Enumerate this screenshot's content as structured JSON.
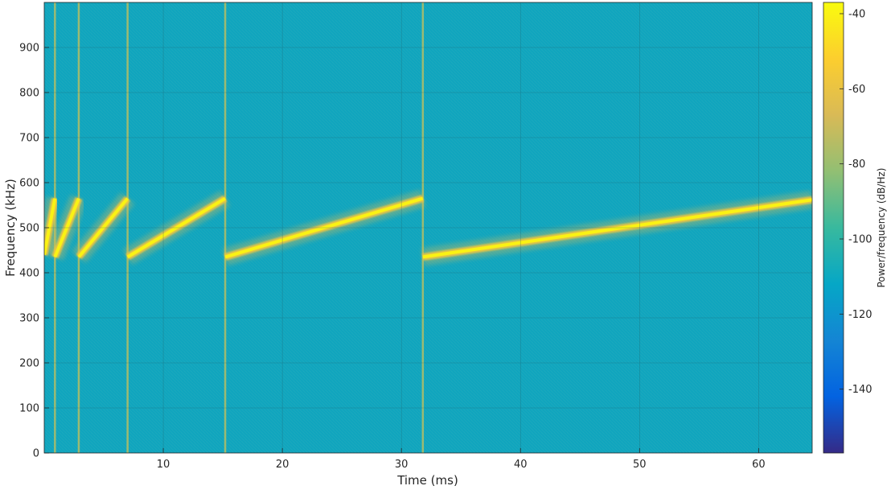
{
  "chart_data": {
    "type": "heatmap",
    "title": "",
    "xlabel": "Time (ms)",
    "ylabel": "Frequency (kHz)",
    "xlim": [
      0,
      64.5
    ],
    "ylim": [
      0,
      1000
    ],
    "xticks": [
      10,
      20,
      30,
      40,
      50,
      60
    ],
    "yticks": [
      0,
      100,
      200,
      300,
      400,
      500,
      600,
      700,
      800,
      900
    ],
    "grid": true,
    "colorbar": {
      "label": "Power/frequency (dB/Hz)",
      "range": [
        -157,
        -37
      ],
      "ticks": [
        -40,
        -60,
        -80,
        -100,
        -120,
        -140
      ],
      "colormap": [
        "#352a87",
        "#0363e1",
        "#1485d4",
        "#06a7c6",
        "#38b99e",
        "#92bf73",
        "#d9ba56",
        "#fcce2e",
        "#f9fb0e"
      ],
      "background_color": "#10a5be"
    },
    "chirps": [
      {
        "t_start": 0.0,
        "t_end": 0.9,
        "f_start": 440,
        "f_end": 565
      },
      {
        "t_start": 0.9,
        "t_end": 2.9,
        "f_start": 435,
        "f_end": 565
      },
      {
        "t_start": 2.9,
        "t_end": 7.0,
        "f_start": 435,
        "f_end": 565
      },
      {
        "t_start": 7.0,
        "t_end": 15.2,
        "f_start": 435,
        "f_end": 565
      },
      {
        "t_start": 15.2,
        "t_end": 31.8,
        "f_start": 435,
        "f_end": 565
      },
      {
        "t_start": 31.8,
        "t_end": 64.5,
        "f_start": 435,
        "f_end": 562
      }
    ],
    "transitions_ms": [
      0.9,
      2.9,
      7.0,
      15.2,
      31.8
    ],
    "chirp_power_db": -40
  }
}
